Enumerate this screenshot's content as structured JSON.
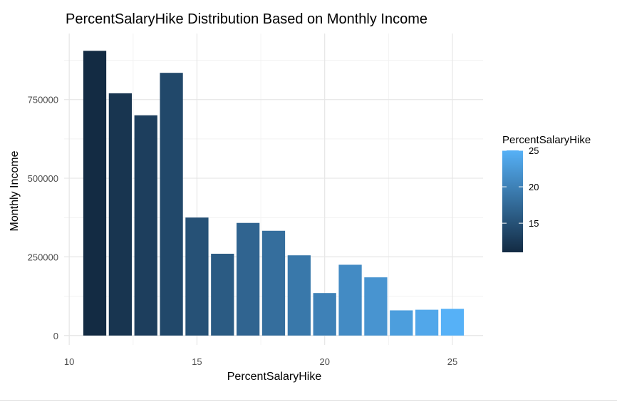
{
  "chart_data": {
    "type": "bar",
    "title": "PercentSalaryHike Distribution Based on Monthly Income",
    "xlabel": "PercentSalaryHike",
    "ylabel": "Monthly Income",
    "x": [
      11,
      12,
      13,
      14,
      15,
      16,
      17,
      18,
      19,
      20,
      21,
      22,
      23,
      24,
      25
    ],
    "values": [
      905000,
      770000,
      700000,
      835000,
      375000,
      260000,
      358000,
      333000,
      255000,
      135000,
      225000,
      185000,
      80000,
      82000,
      85000
    ],
    "xlim": [
      9.8,
      26.2
    ],
    "ylim": [
      -30000,
      960000
    ],
    "x_ticks": [
      10,
      15,
      20,
      25
    ],
    "x_tick_labels": [
      "10",
      "15",
      "20",
      "25"
    ],
    "y_ticks": [
      0,
      250000,
      500000,
      750000
    ],
    "y_tick_labels": [
      "0",
      "250000",
      "500000",
      "750000"
    ],
    "grid": true,
    "fill": "PercentSalaryHike",
    "color_scale": {
      "low": "#132B43",
      "high": "#56B1F7",
      "min": 11,
      "max": 25
    },
    "legend": {
      "title": "PercentSalaryHike",
      "position": "right",
      "ticks": [
        15,
        20,
        25
      ],
      "tick_labels": [
        "15",
        "20",
        "25"
      ]
    }
  }
}
